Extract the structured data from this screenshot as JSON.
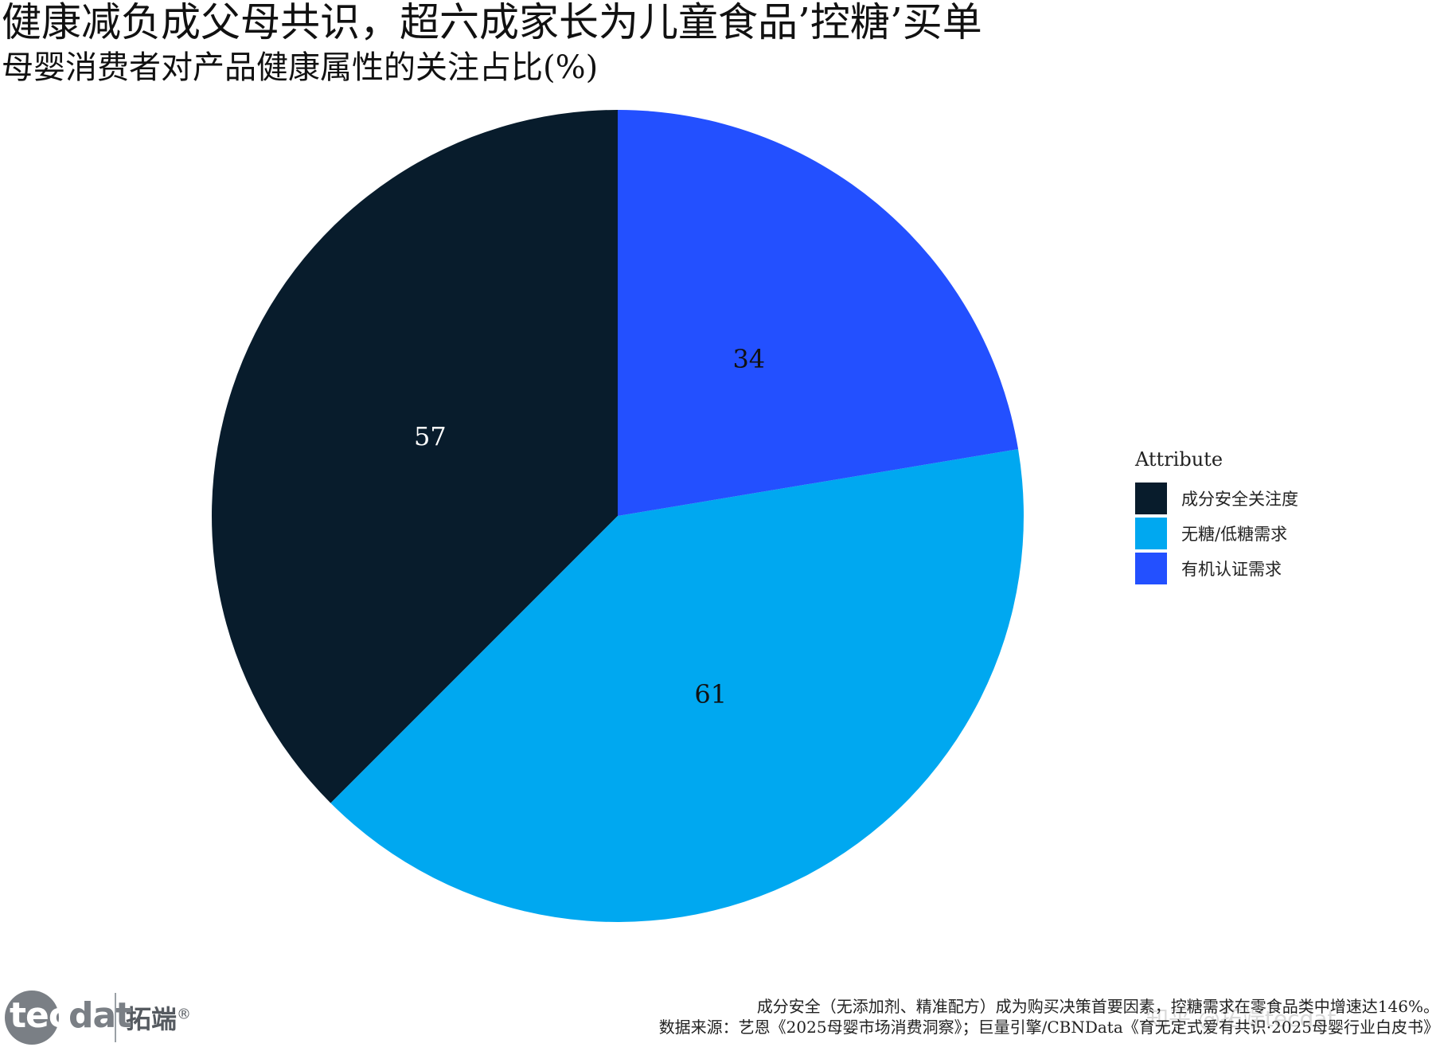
{
  "header": {
    "title": "健康减负成父母共识，超六成家长为儿童食品’控糖’买单",
    "subtitle": "母婴消费者对产品健康属性的关注占比(%)"
  },
  "chart_data": {
    "type": "pie",
    "title": "健康减负成父母共识，超六成家长为儿童食品’控糖’买单",
    "subtitle": "母婴消费者对产品健康属性的关注占比(%)",
    "categories": [
      "成分安全关注度",
      "无糖/低糖需求",
      "有机认证需求"
    ],
    "values": [
      57,
      61,
      34
    ],
    "labels": [
      "57",
      "61",
      "34"
    ],
    "colors": [
      "#081c2c",
      "#00a8f0",
      "#2350ff"
    ],
    "label_colors": [
      "#ffffff",
      "#111111",
      "#111111"
    ],
    "start": "12 o'clock",
    "direction": "counterclockwise",
    "legend": {
      "title": "Attribute",
      "position": "right"
    }
  },
  "footer": {
    "note": "成分安全（无添加剂、精准配方）成为购买决策首要因素，控糖需求在零食品类中增速达146%。",
    "source": "数据来源：艺恩《2025母婴市场消费洞察》；巨量引擎/CBNData《育无定式爱有共识·2025母婴行业白皮书》",
    "logo": {
      "text_part1": "tec",
      "text_part2": "dat",
      "cn": "拓端",
      "mark": "®"
    },
    "watermark": "知乎 @拓端tecdat"
  }
}
